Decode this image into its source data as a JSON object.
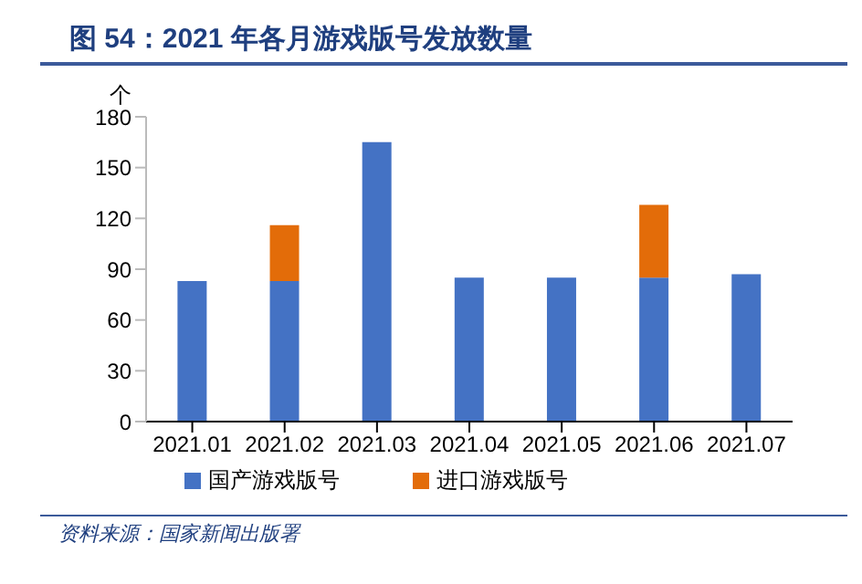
{
  "chart_data": {
    "type": "bar",
    "title": "图 54：2021 年各月游戏版号发放数量",
    "ylabel": "个",
    "categories": [
      "2021.01",
      "2021.02",
      "2021.03",
      "2021.04",
      "2021.05",
      "2021.06",
      "2021.07"
    ],
    "series": [
      {
        "name": "国产游戏版号",
        "color": "#4472c4",
        "values": [
          83,
          83,
          165,
          85,
          85,
          85,
          87
        ]
      },
      {
        "name": "进口游戏版号",
        "color": "#e36c09",
        "values": [
          null,
          33,
          null,
          null,
          null,
          43,
          null
        ]
      }
    ],
    "stacked": true,
    "ylim": [
      0,
      180
    ],
    "yticks": [
      0,
      30,
      60,
      90,
      120,
      150,
      180
    ],
    "grid": false,
    "legend": "bottom",
    "annotations": [
      "资料来源：国家新闻出版署"
    ]
  }
}
